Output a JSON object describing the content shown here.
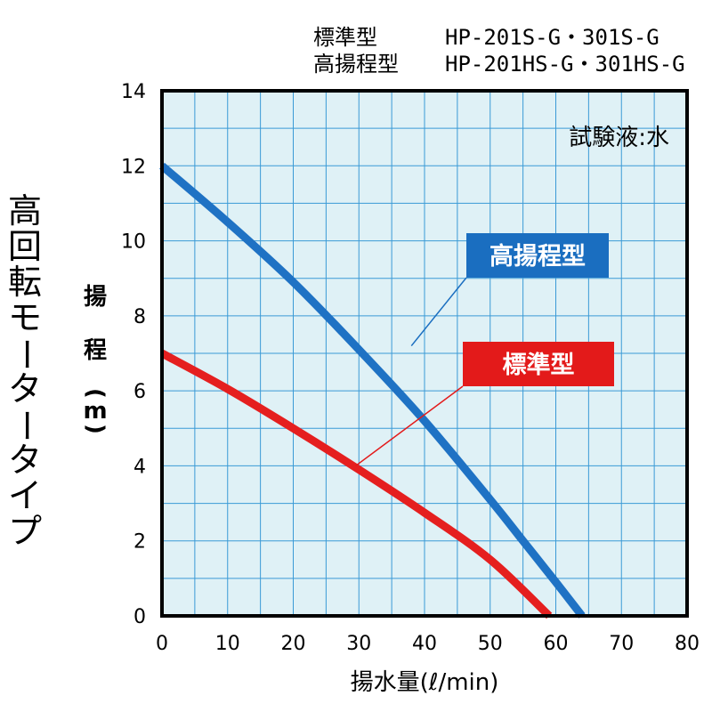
{
  "header": {
    "rows": [
      {
        "type": "標準型",
        "models": "HP-201S-G・301S-G"
      },
      {
        "type": "高揚程型",
        "models": "HP-201HS-G・301HS-G"
      }
    ]
  },
  "side_title": "高回転モータータイプ",
  "chart_data": {
    "type": "line",
    "title": "",
    "xlabel": "揚水量(ℓ/min)",
    "ylabel": "揚程(m)",
    "ylabel_chars": [
      "揚",
      "程",
      "(",
      "m",
      ")"
    ],
    "xlim": [
      0,
      80
    ],
    "ylim": [
      0,
      14
    ],
    "xticks": [
      0,
      10,
      20,
      30,
      40,
      50,
      60,
      70,
      80
    ],
    "yticks": [
      0,
      2,
      4,
      6,
      8,
      10,
      12,
      14
    ],
    "grid": true,
    "note": "試験液:水",
    "series": [
      {
        "name": "高揚程型",
        "color": "#1f72c4",
        "x": [
          0,
          10,
          20,
          30,
          40,
          50,
          55,
          60,
          64
        ],
        "y": [
          12,
          10.5,
          8.9,
          7.1,
          5.2,
          3.1,
          2.0,
          0.9,
          0
        ]
      },
      {
        "name": "標準型",
        "color": "#e51f1f",
        "x": [
          0,
          10,
          20,
          30,
          40,
          50,
          59
        ],
        "y": [
          7,
          6.05,
          5.0,
          3.9,
          2.75,
          1.5,
          0
        ]
      }
    ],
    "callouts": [
      {
        "series": "高揚程型",
        "label": "高揚程型",
        "point": [
          38,
          7.2
        ],
        "box_color": "#1a6ec0"
      },
      {
        "series": "標準型",
        "label": "標準型",
        "point": [
          29.5,
          4.0
        ],
        "box_color": "#e31a1a"
      }
    ]
  }
}
